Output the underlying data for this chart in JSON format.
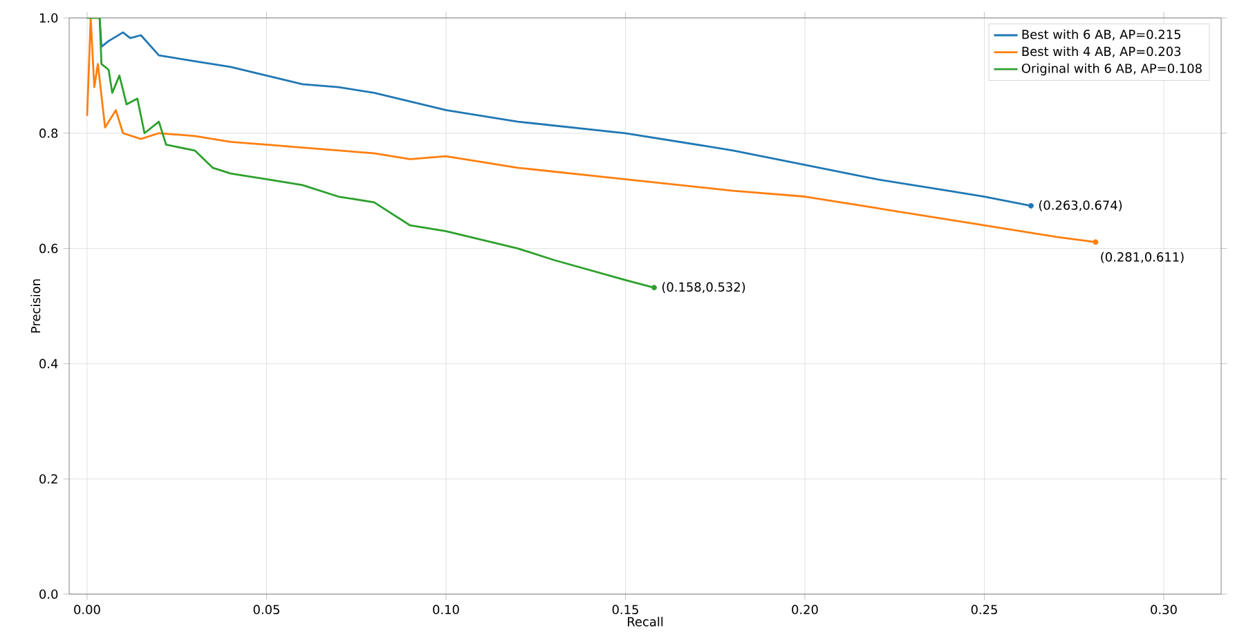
{
  "chart_data": {
    "type": "line",
    "xlabel": "Recall",
    "ylabel": "Precision",
    "xlim": [
      -0.005,
      0.316
    ],
    "ylim": [
      0,
      1.0
    ],
    "xticks": [
      {
        "value": 0,
        "label": "0.00"
      },
      0.05,
      {
        "value": 0.1,
        "label": "0.10"
      },
      0.15,
      {
        "value": 0.2,
        "label": "0.20"
      },
      0.25,
      {
        "value": 0.3,
        "label": "0.30"
      }
    ],
    "yticks": [
      {
        "value": 0,
        "label": "0.0"
      },
      0.2,
      0.4,
      0.6,
      0.8,
      {
        "value": 1.0,
        "label": "1.0"
      }
    ],
    "grid": true,
    "legend": "top right",
    "line_style": "solid",
    "series": [
      {
        "name": "Best with 6 AB, AP=0.215",
        "color": "#1f77b4",
        "x": [
          0.0035,
          0.004,
          0.006,
          0.01,
          0.012,
          0.015,
          0.02,
          0.03,
          0.04,
          0.05,
          0.06,
          0.07,
          0.08,
          0.09,
          0.1,
          0.12,
          0.15,
          0.18,
          0.2,
          0.22,
          0.24,
          0.25,
          0.263
        ],
        "values": [
          1.0,
          0.95,
          0.96,
          0.975,
          0.965,
          0.97,
          0.935,
          0.925,
          0.915,
          0.9,
          0.885,
          0.88,
          0.87,
          0.855,
          0.84,
          0.82,
          0.8,
          0.77,
          0.745,
          0.72,
          0.7,
          0.69,
          0.674
        ]
      },
      {
        "name": "Best with 4 AB, AP=0.203",
        "color": "#ff7f0e",
        "x": [
          0,
          0.001,
          0.002,
          0.003,
          0.005,
          0.008,
          0.01,
          0.015,
          0.02,
          0.03,
          0.04,
          0.05,
          0.06,
          0.08,
          0.09,
          0.1,
          0.12,
          0.15,
          0.18,
          0.2,
          0.22,
          0.25,
          0.27,
          0.281
        ],
        "values": [
          0.83,
          1.0,
          0.88,
          0.92,
          0.81,
          0.84,
          0.8,
          0.79,
          0.8,
          0.795,
          0.785,
          0.78,
          0.775,
          0.765,
          0.755,
          0.76,
          0.74,
          0.72,
          0.7,
          0.69,
          0.67,
          0.64,
          0.62,
          0.611
        ]
      },
      {
        "name": "Original with 6 AB, AP=0.108",
        "color": "#2ca02c",
        "x": [
          0,
          0.0035,
          0.004,
          0.006,
          0.007,
          0.009,
          0.011,
          0.014,
          0.016,
          0.02,
          0.022,
          0.03,
          0.035,
          0.04,
          0.05,
          0.06,
          0.07,
          0.08,
          0.09,
          0.1,
          0.12,
          0.13,
          0.15,
          0.158
        ],
        "values": [
          1.0,
          1.0,
          0.92,
          0.91,
          0.87,
          0.9,
          0.85,
          0.86,
          0.8,
          0.82,
          0.78,
          0.77,
          0.74,
          0.73,
          0.72,
          0.71,
          0.69,
          0.68,
          0.64,
          0.63,
          0.6,
          0.58,
          0.545,
          0.532
        ]
      }
    ],
    "annotations": [
      {
        "text": "(0.263,0.674)",
        "x": 0.263,
        "y": 0.674
      },
      {
        "text": "(0.281,0.611)",
        "x": 0.281,
        "y": 0.611
      },
      {
        "text": "(0.158,0.532)",
        "x": 0.158,
        "y": 0.532
      }
    ]
  }
}
